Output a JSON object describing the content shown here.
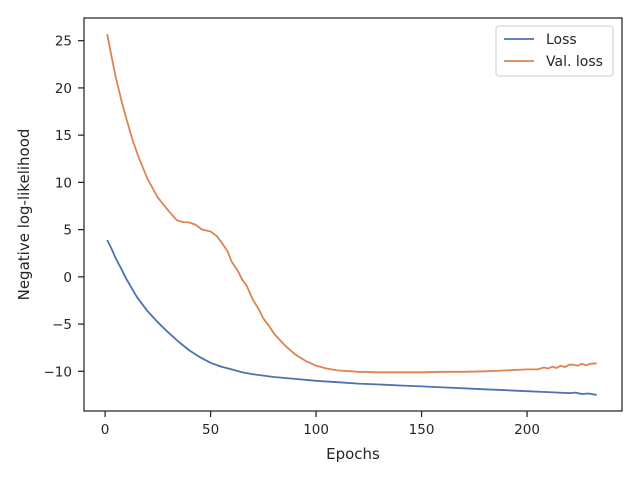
{
  "chart_data": {
    "type": "line",
    "title": "",
    "xlabel": "Epochs",
    "ylabel": "Negative log-likelihood",
    "xlim": [
      -10,
      245
    ],
    "ylim": [
      -14.2,
      27.4
    ],
    "xticks": [
      0,
      50,
      100,
      150,
      200
    ],
    "yticks": [
      -10,
      -5,
      0,
      5,
      10,
      15,
      20,
      25
    ],
    "grid": false,
    "legend": {
      "placement": "top-right",
      "entries": [
        "Loss",
        "Val. loss"
      ]
    },
    "series": [
      {
        "name": "Loss",
        "color": "#4c72b0",
        "points": [
          [
            1,
            3.9
          ],
          [
            3,
            3.0
          ],
          [
            5,
            2.0
          ],
          [
            8,
            0.7
          ],
          [
            10,
            -0.2
          ],
          [
            15,
            -2.1
          ],
          [
            20,
            -3.6
          ],
          [
            25,
            -4.8
          ],
          [
            30,
            -5.9
          ],
          [
            35,
            -6.9
          ],
          [
            40,
            -7.8
          ],
          [
            45,
            -8.5
          ],
          [
            50,
            -9.1
          ],
          [
            55,
            -9.5
          ],
          [
            60,
            -9.8
          ],
          [
            65,
            -10.1
          ],
          [
            70,
            -10.3
          ],
          [
            80,
            -10.6
          ],
          [
            90,
            -10.8
          ],
          [
            100,
            -11.0
          ],
          [
            110,
            -11.15
          ],
          [
            120,
            -11.3
          ],
          [
            130,
            -11.4
          ],
          [
            140,
            -11.5
          ],
          [
            150,
            -11.6
          ],
          [
            160,
            -11.7
          ],
          [
            170,
            -11.8
          ],
          [
            180,
            -11.9
          ],
          [
            190,
            -12.0
          ],
          [
            200,
            -12.1
          ],
          [
            210,
            -12.2
          ],
          [
            215,
            -12.25
          ],
          [
            220,
            -12.3
          ],
          [
            223,
            -12.25
          ],
          [
            226,
            -12.4
          ],
          [
            229,
            -12.35
          ],
          [
            233,
            -12.5
          ]
        ]
      },
      {
        "name": "Val. loss",
        "color": "#dd8452",
        "points": [
          [
            1,
            25.7
          ],
          [
            3,
            23.4
          ],
          [
            5,
            21.2
          ],
          [
            8,
            18.4
          ],
          [
            10,
            16.8
          ],
          [
            13,
            14.5
          ],
          [
            16,
            12.6
          ],
          [
            20,
            10.4
          ],
          [
            25,
            8.4
          ],
          [
            30,
            7.0
          ],
          [
            34,
            6.0
          ],
          [
            37,
            5.8
          ],
          [
            40,
            5.75
          ],
          [
            43,
            5.5
          ],
          [
            46,
            5.0
          ],
          [
            50,
            4.8
          ],
          [
            53,
            4.3
          ],
          [
            56,
            3.4
          ],
          [
            58,
            2.7
          ],
          [
            60,
            1.6
          ],
          [
            63,
            0.6
          ],
          [
            65,
            -0.3
          ],
          [
            67,
            -0.9
          ],
          [
            70,
            -2.4
          ],
          [
            73,
            -3.5
          ],
          [
            75,
            -4.4
          ],
          [
            78,
            -5.3
          ],
          [
            80,
            -6.0
          ],
          [
            85,
            -7.2
          ],
          [
            90,
            -8.2
          ],
          [
            95,
            -8.9
          ],
          [
            100,
            -9.4
          ],
          [
            105,
            -9.7
          ],
          [
            110,
            -9.9
          ],
          [
            120,
            -10.05
          ],
          [
            130,
            -10.1
          ],
          [
            140,
            -10.1
          ],
          [
            150,
            -10.1
          ],
          [
            160,
            -10.05
          ],
          [
            170,
            -10.05
          ],
          [
            180,
            -10.0
          ],
          [
            190,
            -9.9
          ],
          [
            200,
            -9.8
          ],
          [
            205,
            -9.8
          ],
          [
            208,
            -9.6
          ],
          [
            210,
            -9.7
          ],
          [
            212,
            -9.5
          ],
          [
            214,
            -9.65
          ],
          [
            216,
            -9.4
          ],
          [
            218,
            -9.55
          ],
          [
            220,
            -9.3
          ],
          [
            222,
            -9.3
          ],
          [
            224,
            -9.4
          ],
          [
            226,
            -9.2
          ],
          [
            228,
            -9.35
          ],
          [
            230,
            -9.2
          ],
          [
            233,
            -9.15
          ]
        ]
      }
    ]
  }
}
